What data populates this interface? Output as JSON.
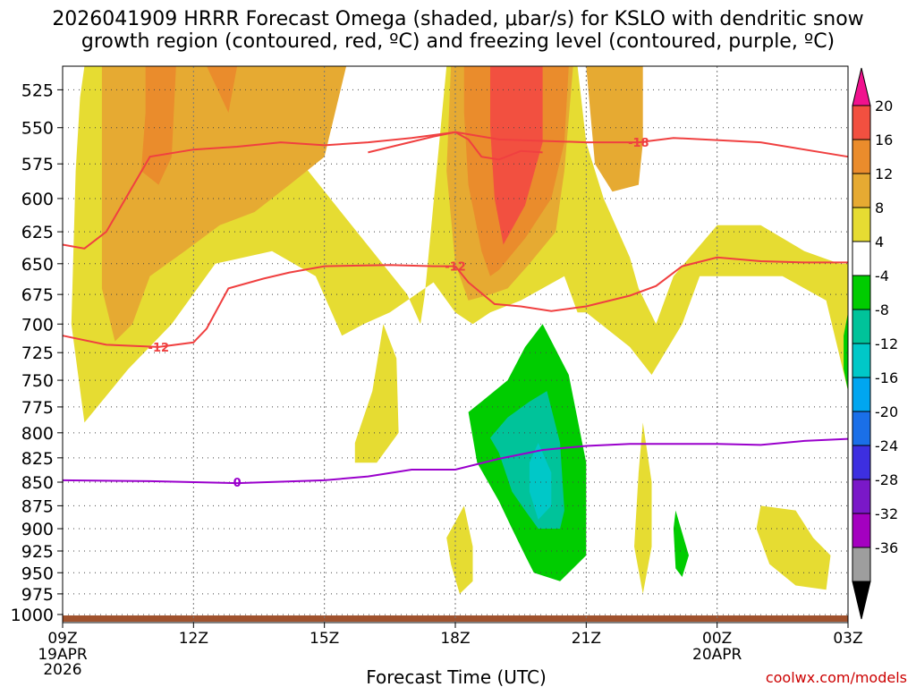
{
  "chart_data": {
    "type": "heatmap",
    "title_line1": "2026041909 HRRR Forecast Omega (shaded, μbar/s) for KSLO with dendritic snow",
    "title_line2": "growth region (contoured, red, ºC) and freezing level (contoured, purple, ºC)",
    "xlabel": "Forecast Time (UTC)",
    "credit": "coolwx.com/models",
    "x_range_hours": [
      0,
      18
    ],
    "x_ticks": [
      {
        "hour": 0,
        "label": "09Z",
        "sub1": "19APR",
        "sub2": "2026"
      },
      {
        "hour": 3,
        "label": "12Z",
        "sub1": "",
        "sub2": ""
      },
      {
        "hour": 6,
        "label": "15Z",
        "sub1": "",
        "sub2": ""
      },
      {
        "hour": 9,
        "label": "18Z",
        "sub1": "",
        "sub2": ""
      },
      {
        "hour": 12,
        "label": "21Z",
        "sub1": "",
        "sub2": ""
      },
      {
        "hour": 15,
        "label": "00Z",
        "sub1": "20APR",
        "sub2": ""
      },
      {
        "hour": 18,
        "label": "03Z",
        "sub1": "",
        "sub2": ""
      }
    ],
    "y_levels_hpa": [
      "525",
      "550",
      "575",
      "600",
      "625",
      "650",
      "675",
      "700",
      "725",
      "750",
      "775",
      "800",
      "825",
      "850",
      "875",
      "900",
      "925",
      "950",
      "975",
      "1000"
    ],
    "y_scale": "log-pressure",
    "y_range_hpa": [
      510,
      1010
    ],
    "colorbar": {
      "colors": [
        "#e8e8e8",
        "#9e9e9e",
        "#a400c0",
        "#7a18c8",
        "#3d2fe0",
        "#1a6fe8",
        "#00a6f0",
        "#00c8c8",
        "#00c39a",
        "#00cc00",
        "#ffffff",
        "#e6dc32",
        "#e6aa32",
        "#ea8c2c",
        "#f25040",
        "#f0128e"
      ],
      "labels": [
        "20",
        "16",
        "12",
        "8",
        "4",
        "-4",
        "-8",
        "-12",
        "-16",
        "-20",
        "-24",
        "-28",
        "-32",
        "-36"
      ]
    },
    "omega_regions": [
      {
        "level": 4,
        "color": "#e6dc32",
        "points": [
          [
            0.5,
            510
          ],
          [
            2.25,
            510
          ],
          [
            2.4,
            560
          ],
          [
            3.0,
            580
          ],
          [
            4.4,
            570
          ],
          [
            5.5,
            575
          ],
          [
            6.5,
            615
          ],
          [
            7.1,
            640
          ],
          [
            7.9,
            675
          ],
          [
            8.2,
            700
          ],
          [
            8.3,
            675
          ],
          [
            8.8,
            510
          ],
          [
            11.8,
            510
          ],
          [
            12.0,
            560
          ],
          [
            12.4,
            600
          ],
          [
            13.0,
            645
          ],
          [
            13.2,
            670
          ],
          [
            13.6,
            700
          ],
          [
            14.0,
            660
          ],
          [
            15.0,
            620
          ],
          [
            16.0,
            620
          ],
          [
            17.0,
            640
          ],
          [
            17.8,
            650
          ],
          [
            18.0,
            650
          ],
          [
            18.0,
            760
          ],
          [
            17.5,
            680
          ],
          [
            16.5,
            660
          ],
          [
            14.6,
            660
          ],
          [
            14.2,
            700
          ],
          [
            13.5,
            745
          ],
          [
            13.0,
            720
          ],
          [
            12.0,
            690
          ],
          [
            11.8,
            690
          ],
          [
            11.5,
            660
          ],
          [
            10.5,
            680
          ],
          [
            9.8,
            690
          ],
          [
            9.4,
            700
          ],
          [
            9.0,
            690
          ],
          [
            8.5,
            665
          ],
          [
            7.5,
            690
          ],
          [
            6.9,
            700
          ],
          [
            6.4,
            710
          ],
          [
            5.8,
            660
          ],
          [
            4.8,
            640
          ],
          [
            3.5,
            650
          ],
          [
            2.5,
            700
          ],
          [
            1.5,
            740
          ],
          [
            0.5,
            790
          ],
          [
            0.2,
            700
          ],
          [
            0.3,
            580
          ],
          [
            0.4,
            530
          ]
        ]
      },
      {
        "level": 4,
        "color": "#e6dc32",
        "points": [
          [
            7.35,
            700
          ],
          [
            7.65,
            730
          ],
          [
            7.7,
            800
          ],
          [
            7.2,
            830
          ],
          [
            6.7,
            830
          ],
          [
            6.7,
            810
          ],
          [
            7.1,
            760
          ]
        ]
      },
      {
        "level": 4,
        "color": "#e6dc32",
        "points": [
          [
            9.2,
            875
          ],
          [
            9.4,
            920
          ],
          [
            9.4,
            960
          ],
          [
            9.1,
            975
          ],
          [
            8.9,
            940
          ],
          [
            8.8,
            910
          ]
        ]
      },
      {
        "level": 4,
        "color": "#e6dc32",
        "points": [
          [
            13.3,
            790
          ],
          [
            13.5,
            850
          ],
          [
            13.5,
            920
          ],
          [
            13.3,
            975
          ],
          [
            13.1,
            920
          ],
          [
            13.2,
            840
          ]
        ]
      },
      {
        "level": 4,
        "color": "#e6dc32",
        "points": [
          [
            16.0,
            875
          ],
          [
            16.8,
            880
          ],
          [
            17.2,
            910
          ],
          [
            17.6,
            930
          ],
          [
            17.5,
            970
          ],
          [
            16.8,
            965
          ],
          [
            16.2,
            940
          ],
          [
            15.9,
            900
          ]
        ]
      },
      {
        "level": 8,
        "color": "#e6aa32",
        "points": [
          [
            0.9,
            510
          ],
          [
            6.5,
            510
          ],
          [
            6.0,
            570
          ],
          [
            5.2,
            590
          ],
          [
            4.4,
            610
          ],
          [
            3.6,
            620
          ],
          [
            2.8,
            640
          ],
          [
            2.0,
            660
          ],
          [
            1.6,
            700
          ],
          [
            1.2,
            715
          ],
          [
            0.9,
            670
          ],
          [
            0.9,
            600
          ]
        ]
      },
      {
        "level": 8,
        "color": "#e6aa32",
        "points": [
          [
            8.9,
            510
          ],
          [
            11.7,
            510
          ],
          [
            11.5,
            580
          ],
          [
            11.3,
            625
          ],
          [
            10.7,
            650
          ],
          [
            10.2,
            670
          ],
          [
            9.8,
            675
          ],
          [
            9.3,
            680
          ],
          [
            9.0,
            650
          ],
          [
            8.8,
            580
          ]
        ]
      },
      {
        "level": 8,
        "color": "#e6aa32",
        "points": [
          [
            12.0,
            510
          ],
          [
            13.3,
            510
          ],
          [
            13.3,
            560
          ],
          [
            13.2,
            590
          ],
          [
            12.6,
            595
          ],
          [
            12.2,
            575
          ]
        ]
      },
      {
        "level": 12,
        "color": "#ea8c2c",
        "points": [
          [
            1.9,
            510
          ],
          [
            2.6,
            510
          ],
          [
            2.5,
            570
          ],
          [
            2.2,
            590
          ],
          [
            1.8,
            580
          ],
          [
            1.9,
            540
          ]
        ]
      },
      {
        "level": 12,
        "color": "#ea8c2c",
        "points": [
          [
            3.3,
            510
          ],
          [
            4.0,
            510
          ],
          [
            3.8,
            540
          ]
        ]
      },
      {
        "level": 12,
        "color": "#ea8c2c",
        "points": [
          [
            9.2,
            510
          ],
          [
            11.6,
            510
          ],
          [
            11.5,
            560
          ],
          [
            11.2,
            600
          ],
          [
            10.6,
            630
          ],
          [
            10.0,
            655
          ],
          [
            9.8,
            660
          ],
          [
            9.6,
            640
          ],
          [
            9.3,
            590
          ],
          [
            9.2,
            540
          ]
        ]
      },
      {
        "level": 16,
        "color": "#f25040",
        "points": [
          [
            9.8,
            510
          ],
          [
            11.0,
            510
          ],
          [
            11.0,
            560
          ],
          [
            10.6,
            605
          ],
          [
            10.1,
            635
          ],
          [
            9.9,
            600
          ],
          [
            9.8,
            550
          ]
        ]
      },
      {
        "level": -4,
        "color": "#00cc00",
        "points": [
          [
            11.0,
            700
          ],
          [
            11.6,
            745
          ],
          [
            12.0,
            830
          ],
          [
            12.0,
            930
          ],
          [
            11.4,
            960
          ],
          [
            10.8,
            950
          ],
          [
            10.6,
            930
          ],
          [
            10.3,
            900
          ],
          [
            10.0,
            870
          ],
          [
            9.5,
            830
          ],
          [
            9.3,
            780
          ],
          [
            9.6,
            770
          ],
          [
            10.2,
            750
          ],
          [
            10.6,
            720
          ]
        ]
      },
      {
        "level": -4,
        "color": "#00cc00",
        "points": [
          [
            14.05,
            880
          ],
          [
            14.35,
            930
          ],
          [
            14.2,
            955
          ],
          [
            14.05,
            945
          ],
          [
            14.0,
            900
          ]
        ]
      },
      {
        "level": -4,
        "color": "#00cc00",
        "points": [
          [
            18.0,
            690
          ],
          [
            18.0,
            760
          ],
          [
            17.9,
            740
          ],
          [
            17.9,
            710
          ]
        ]
      },
      {
        "level": -8,
        "color": "#00c39a",
        "points": [
          [
            11.1,
            760
          ],
          [
            11.4,
            810
          ],
          [
            11.5,
            880
          ],
          [
            11.4,
            900
          ],
          [
            10.9,
            900
          ],
          [
            10.6,
            880
          ],
          [
            10.3,
            860
          ],
          [
            10.0,
            820
          ],
          [
            9.8,
            805
          ],
          [
            10.2,
            785
          ],
          [
            10.7,
            770
          ]
        ]
      },
      {
        "level": -12,
        "color": "#00c8c8",
        "points": [
          [
            10.9,
            810
          ],
          [
            11.2,
            840
          ],
          [
            11.2,
            875
          ],
          [
            10.9,
            890
          ],
          [
            10.7,
            860
          ],
          [
            10.7,
            830
          ]
        ]
      }
    ],
    "contours": [
      {
        "name": "dendritic -18",
        "color": "#f04040",
        "label": "-18",
        "label_at": [
          13.2,
          560
        ],
        "points": [
          [
            7.0,
            567
          ],
          [
            8.5,
            556
          ],
          [
            9.0,
            553
          ],
          [
            10.0,
            558
          ],
          [
            12.0,
            560
          ],
          [
            13.2,
            560
          ],
          [
            14.0,
            557
          ],
          [
            16.0,
            560
          ],
          [
            18.0,
            570
          ]
        ]
      },
      {
        "name": "dendritic -12 (upper)",
        "color": "#f04040",
        "label": "-12",
        "label_at": [
          9.0,
          652
        ],
        "points": [
          [
            0.0,
            635
          ],
          [
            0.5,
            638
          ],
          [
            1.0,
            625
          ],
          [
            2.0,
            570
          ],
          [
            3.0,
            565
          ],
          [
            4.0,
            563
          ],
          [
            5.0,
            560
          ],
          [
            6.0,
            562
          ],
          [
            7.0,
            560
          ],
          [
            8.0,
            557
          ],
          [
            9.0,
            553
          ],
          [
            9.3,
            558
          ],
          [
            9.6,
            570
          ],
          [
            10.0,
            572
          ],
          [
            10.5,
            566
          ],
          [
            11.0,
            567
          ]
        ]
      },
      {
        "name": "dendritic -12 (lower)",
        "color": "#f04040",
        "label": "-12",
        "label_at": [
          2.2,
          720
        ],
        "points": [
          [
            0.0,
            710
          ],
          [
            1.0,
            718
          ],
          [
            2.2,
            720
          ],
          [
            3.0,
            716
          ],
          [
            3.3,
            704
          ],
          [
            3.8,
            670
          ],
          [
            4.6,
            662
          ],
          [
            5.2,
            657
          ],
          [
            6.0,
            652
          ],
          [
            7.5,
            651
          ],
          [
            8.5,
            652
          ],
          [
            9.0,
            652
          ],
          [
            9.3,
            665
          ],
          [
            9.9,
            683
          ],
          [
            10.5,
            685
          ],
          [
            11.2,
            689
          ],
          [
            12.0,
            685
          ],
          [
            13.0,
            676
          ],
          [
            13.6,
            668
          ],
          [
            14.2,
            652
          ],
          [
            15.0,
            645
          ],
          [
            16.0,
            648
          ],
          [
            17.0,
            649
          ],
          [
            18.0,
            649
          ]
        ]
      },
      {
        "name": "freezing level 0",
        "color": "#9a00cc",
        "label": "0",
        "label_at": [
          4.0,
          850
        ],
        "points": [
          [
            0.0,
            848
          ],
          [
            2.0,
            849
          ],
          [
            4.0,
            851
          ],
          [
            6.0,
            848
          ],
          [
            7.0,
            844
          ],
          [
            8.0,
            837
          ],
          [
            9.0,
            837
          ],
          [
            10.0,
            826
          ],
          [
            11.0,
            817
          ],
          [
            12.0,
            813
          ],
          [
            13.0,
            811
          ],
          [
            15.0,
            811
          ],
          [
            16.0,
            812
          ],
          [
            17.0,
            808
          ],
          [
            18.0,
            806
          ]
        ]
      }
    ]
  }
}
